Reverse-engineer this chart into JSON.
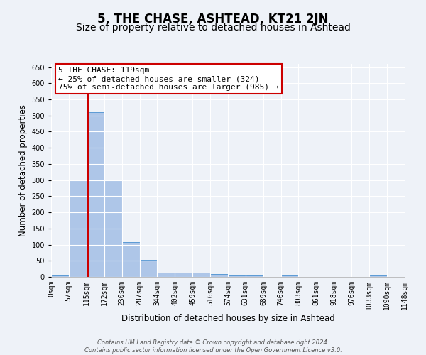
{
  "title": "5, THE CHASE, ASHTEAD, KT21 2JN",
  "subtitle": "Size of property relative to detached houses in Ashtead",
  "xlabel": "Distribution of detached houses by size in Ashtead",
  "ylabel": "Number of detached properties",
  "bin_edges": [
    0,
    57,
    115,
    172,
    230,
    287,
    344,
    402,
    459,
    516,
    574,
    631,
    689,
    746,
    803,
    861,
    918,
    976,
    1033,
    1090,
    1148
  ],
  "bar_heights": [
    5,
    300,
    510,
    300,
    108,
    53,
    13,
    13,
    13,
    8,
    5,
    5,
    0,
    5,
    0,
    0,
    0,
    0,
    5,
    0
  ],
  "bar_color": "#aec6e8",
  "bar_edge_color": "#5b9bd5",
  "vline_x": 119,
  "vline_color": "#cc0000",
  "ylim": [
    0,
    660
  ],
  "yticks": [
    0,
    50,
    100,
    150,
    200,
    250,
    300,
    350,
    400,
    450,
    500,
    550,
    600,
    650
  ],
  "annotation_box_text": "5 THE CHASE: 119sqm\n← 25% of detached houses are smaller (324)\n75% of semi-detached houses are larger (985) →",
  "annotation_box_color": "#cc0000",
  "annotation_box_bg": "#ffffff",
  "footer_line1": "Contains HM Land Registry data © Crown copyright and database right 2024.",
  "footer_line2": "Contains public sector information licensed under the Open Government Licence v3.0.",
  "bg_color": "#eef2f8",
  "grid_color": "#ffffff",
  "title_fontsize": 12,
  "subtitle_fontsize": 10,
  "tick_label_fontsize": 7,
  "axis_label_fontsize": 8.5,
  "annot_fontsize": 8
}
